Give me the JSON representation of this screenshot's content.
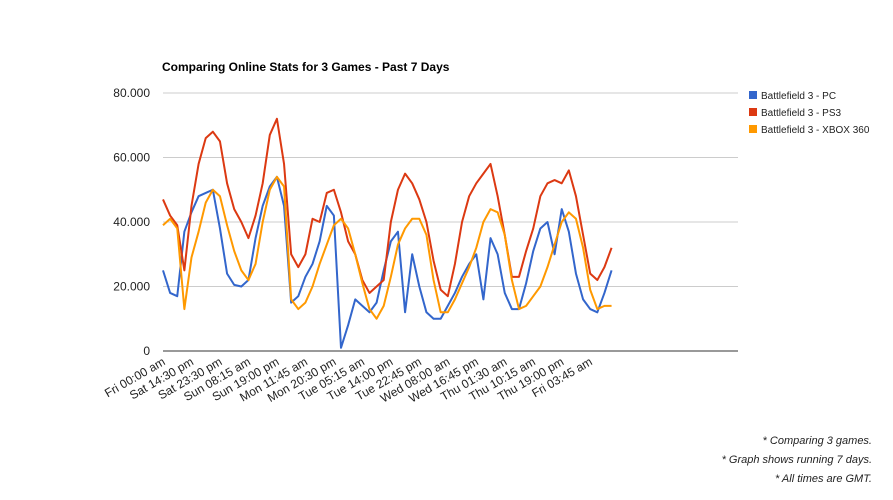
{
  "chart_data": {
    "type": "line",
    "title": "Comparing Online Stats for 3 Games - Past 7 Days",
    "categories": [
      "Fri 00:00 am",
      null,
      null,
      null,
      "Sat 14:30 pm",
      null,
      null,
      null,
      "Sat 23:30 pm",
      null,
      null,
      null,
      "Sun 08:15 am",
      null,
      null,
      null,
      "Sun 19:00 pm",
      null,
      null,
      null,
      "Mon 11:45 am",
      null,
      null,
      null,
      "Mon 20:30 pm",
      null,
      null,
      null,
      "Tue 05:15 am",
      null,
      null,
      null,
      "Tue 14:00 pm",
      null,
      null,
      null,
      "Tue 22:45 pm",
      null,
      null,
      null,
      "Wed 08:00 am",
      null,
      null,
      null,
      "Wed 16:45 pm",
      null,
      null,
      null,
      "Thu 01:30 am",
      null,
      null,
      null,
      "Thu 10:15 am",
      null,
      null,
      null,
      "Thu 19:00 pm",
      null,
      null,
      null,
      "Fri 03:45 am",
      null,
      null,
      null
    ],
    "series": [
      {
        "name": "Battlefield 3 - PC",
        "color": "#3366cc",
        "values": [
          25000,
          18000,
          17000,
          37000,
          43000,
          48000,
          49000,
          50000,
          38000,
          24000,
          20500,
          20000,
          22000,
          35000,
          45000,
          51000,
          54000,
          45000,
          15000,
          17000,
          23000,
          27000,
          34000,
          45000,
          42000,
          1000,
          8000,
          16000,
          14000,
          12000,
          15000,
          25000,
          34000,
          37000,
          12000,
          30000,
          20000,
          12000,
          10000,
          10000,
          14000,
          18000,
          23000,
          27000,
          30000,
          16000,
          35000,
          30000,
          18000,
          13000,
          13000,
          21000,
          31000,
          38000,
          40000,
          30000,
          44000,
          37000,
          24000,
          16000,
          13000,
          12000,
          18000,
          25000
        ]
      },
      {
        "name": "Battlefield 3 - PS3",
        "color": "#dc3912",
        "values": [
          47000,
          42000,
          39000,
          25000,
          45000,
          58000,
          66000,
          68000,
          65000,
          52000,
          44000,
          40000,
          35000,
          42000,
          52000,
          67000,
          72000,
          58000,
          30000,
          26000,
          30000,
          41000,
          40000,
          49000,
          50000,
          43000,
          34000,
          30000,
          22000,
          18000,
          20000,
          22000,
          40000,
          50000,
          55000,
          52000,
          47000,
          40000,
          28000,
          19000,
          17000,
          27000,
          40000,
          48000,
          52000,
          55000,
          58000,
          48000,
          36000,
          23000,
          23000,
          31000,
          38000,
          48000,
          52000,
          53000,
          52000,
          56000,
          48000,
          36000,
          24000,
          22000,
          26000,
          32000
        ]
      },
      {
        "name": "Battlefield 3 - XBOX 360",
        "color": "#ff9900",
        "values": [
          39000,
          41000,
          38000,
          13000,
          29000,
          37000,
          46000,
          50000,
          48000,
          39000,
          31000,
          25000,
          22000,
          27000,
          40000,
          50000,
          54000,
          51000,
          16000,
          13000,
          15000,
          20000,
          27000,
          33000,
          39000,
          41000,
          38000,
          30000,
          21000,
          13000,
          10000,
          14000,
          23000,
          33000,
          38000,
          41000,
          41000,
          36000,
          22000,
          12000,
          12000,
          16000,
          21000,
          26000,
          32000,
          40000,
          44000,
          43000,
          36000,
          22000,
          13000,
          14000,
          17000,
          20000,
          26000,
          33000,
          40000,
          43000,
          41000,
          32000,
          19000,
          13000,
          14000,
          14000
        ]
      }
    ],
    "ylim": [
      0,
      80000
    ],
    "yticks": [
      0,
      {
        "value": 20000,
        "label": "20.000"
      },
      {
        "value": 40000,
        "label": "40.000"
      },
      {
        "value": 60000,
        "label": "60.000"
      },
      {
        "value": 80000,
        "label": "80.000"
      }
    ],
    "grid": true,
    "legend": "right",
    "notes": [
      "* Comparing 3 games.",
      "* Graph shows running 7 days.",
      "* All times are GMT."
    ]
  }
}
